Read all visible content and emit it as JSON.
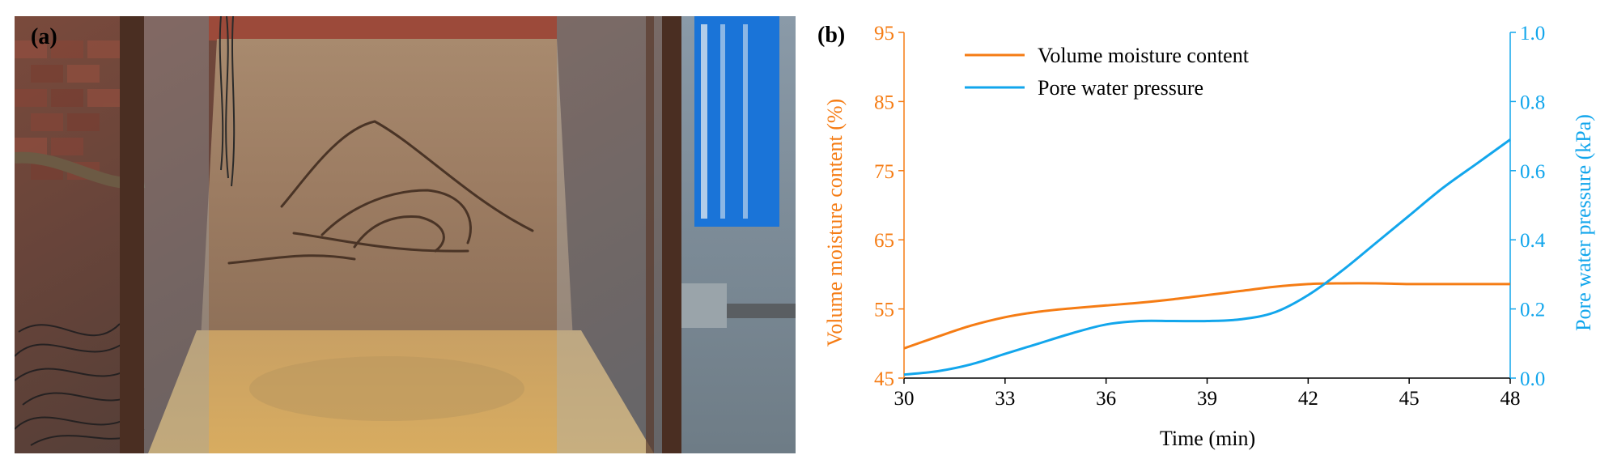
{
  "panel_a": {
    "label": "(a)"
  },
  "panel_b": {
    "label": "(b)"
  },
  "colors": {
    "moisture": "#f57c14",
    "pressure": "#12a6ec",
    "axis": "#000000"
  },
  "chart_data": {
    "type": "line",
    "xlabel": "Time (min)",
    "ylabel_left": "Volume moisture content (%)",
    "ylabel_right": "Pore water pressure (kPa)",
    "xlim": [
      30,
      48
    ],
    "ylim_left": [
      45,
      95
    ],
    "ylim_right": [
      0.0,
      1.0
    ],
    "x_ticks": [
      "30",
      "33",
      "36",
      "39",
      "42",
      "45",
      "48"
    ],
    "y_left_ticks": [
      "45",
      "55",
      "65",
      "75",
      "85",
      "95"
    ],
    "y_right_ticks": [
      "0.0",
      "0.2",
      "0.4",
      "0.6",
      "0.8",
      "1.0"
    ],
    "legend_position": "top-left",
    "series": [
      {
        "name": "Volume moisture content",
        "axis": "left",
        "color": "#f57c14",
        "x": [
          30,
          31,
          32,
          33,
          34,
          35,
          36,
          37,
          38,
          39,
          40,
          41,
          42,
          43,
          44,
          45,
          46,
          47,
          48
        ],
        "y": [
          49.3,
          51.0,
          52.6,
          53.8,
          54.6,
          55.1,
          55.5,
          55.9,
          56.4,
          57.0,
          57.6,
          58.2,
          58.6,
          58.7,
          58.7,
          58.6,
          58.6,
          58.6,
          58.6
        ]
      },
      {
        "name": "Pore water pressure",
        "axis": "right",
        "color": "#12a6ec",
        "x": [
          30,
          31,
          32,
          33,
          34,
          35,
          36,
          37,
          38,
          39,
          40,
          41,
          42,
          43,
          44,
          45,
          46,
          47,
          48
        ],
        "y": [
          0.01,
          0.02,
          0.04,
          0.07,
          0.1,
          0.13,
          0.155,
          0.165,
          0.165,
          0.165,
          0.17,
          0.19,
          0.24,
          0.31,
          0.39,
          0.47,
          0.55,
          0.62,
          0.69
        ]
      }
    ]
  }
}
